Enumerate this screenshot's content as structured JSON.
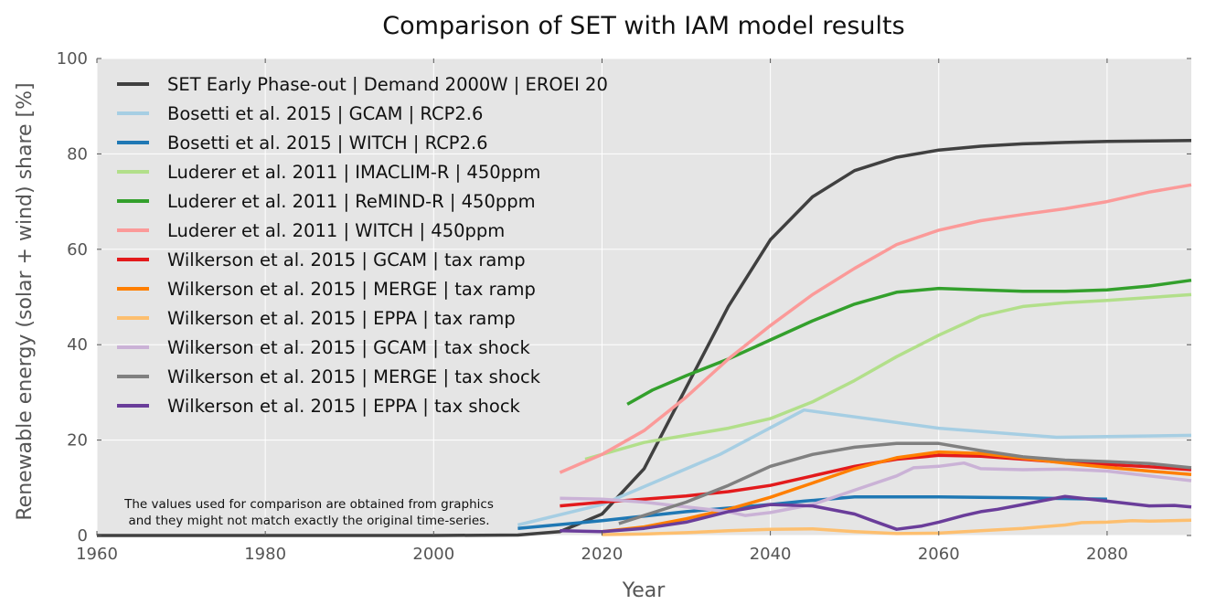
{
  "chart_data": {
    "type": "line",
    "title": "Comparison of SET with IAM model results",
    "xlabel": "Year",
    "ylabel": "Renewable energy (solar + wind) share [%]",
    "xlim": [
      1960,
      2090
    ],
    "ylim": [
      0,
      100
    ],
    "xticks": [
      1960,
      1980,
      2000,
      2020,
      2040,
      2060,
      2080
    ],
    "yticks": [
      0,
      20,
      40,
      60,
      80,
      100
    ],
    "grid": true,
    "legend_position": "upper-left",
    "note": [
      "The values used for comparison are obtained from graphics",
      "and they might not match exactly the original time-series."
    ],
    "series": [
      {
        "name": "SET Early Phase-out | Demand 2000W | EROEI 20",
        "color": "#404040",
        "x": [
          1960,
          2000,
          2010,
          2015,
          2020,
          2025,
          2030,
          2035,
          2040,
          2045,
          2050,
          2055,
          2060,
          2065,
          2070,
          2075,
          2080,
          2085,
          2090
        ],
        "y": [
          0,
          0,
          0.1,
          0.8,
          4.5,
          14,
          31,
          48,
          62,
          71,
          76.5,
          79.3,
          80.8,
          81.6,
          82.1,
          82.4,
          82.6,
          82.7,
          82.8
        ]
      },
      {
        "name": "Bosetti et al. 2015 | GCAM | RCP2.6",
        "color": "#a6cee3",
        "x": [
          2010,
          2020,
          2034,
          2044,
          2060,
          2074,
          2090
        ],
        "y": [
          2.2,
          6.5,
          17,
          26.3,
          22.5,
          20.6,
          21
        ]
      },
      {
        "name": "Bosetti et al. 2015 | WITCH | RCP2.6",
        "color": "#1f78b4",
        "x": [
          2010,
          2020,
          2030,
          2040,
          2044,
          2050,
          2060,
          2070,
          2080
        ],
        "y": [
          1.5,
          3.1,
          5,
          6.5,
          7.2,
          8.1,
          8.1,
          7.9,
          7.6
        ]
      },
      {
        "name": "Luderer et al. 2011 | IMACLIM-R | 450ppm",
        "color": "#b2df8a",
        "x": [
          2018,
          2025,
          2030,
          2035,
          2040,
          2045,
          2050,
          2055,
          2060,
          2065,
          2070,
          2075,
          2080,
          2090
        ],
        "y": [
          16,
          19.5,
          21,
          22.5,
          24.5,
          28,
          32.5,
          37.5,
          42,
          46,
          48,
          48.8,
          49.3,
          50.5
        ]
      },
      {
        "name": "Luderer et al. 2011 | ReMIND-R | 450ppm",
        "color": "#33a02c",
        "x": [
          2023,
          2026,
          2030,
          2035,
          2040,
          2045,
          2050,
          2055,
          2060,
          2065,
          2070,
          2075,
          2080,
          2085,
          2090
        ],
        "y": [
          27.5,
          30.5,
          33.5,
          37,
          41,
          45,
          48.5,
          51,
          51.8,
          51.5,
          51.2,
          51.2,
          51.5,
          52.3,
          53.5
        ]
      },
      {
        "name": "Luderer et al. 2011 | WITCH | 450ppm",
        "color": "#fb9a99",
        "x": [
          2015,
          2020,
          2025,
          2030,
          2035,
          2040,
          2045,
          2050,
          2055,
          2060,
          2065,
          2070,
          2075,
          2080,
          2085,
          2090
        ],
        "y": [
          13.2,
          17,
          22,
          29,
          37,
          44,
          50.5,
          56,
          61,
          64,
          66,
          67.3,
          68.5,
          70,
          72,
          73.5
        ]
      },
      {
        "name": "Wilkerson et al. 2015 | GCAM | tax ramp",
        "color": "#e31a1c",
        "x": [
          2015,
          2020,
          2025,
          2030,
          2035,
          2040,
          2045,
          2050,
          2055,
          2060,
          2065,
          2070,
          2075,
          2080,
          2085,
          2090
        ],
        "y": [
          6.2,
          7,
          7.6,
          8.3,
          9.2,
          10.5,
          12.5,
          14.5,
          16,
          16.8,
          16.6,
          16,
          15.3,
          14.9,
          14.4,
          13.8
        ]
      },
      {
        "name": "Wilkerson et al. 2015 | MERGE | tax ramp",
        "color": "#ff7f00",
        "x": [
          2020,
          2025,
          2030,
          2035,
          2040,
          2045,
          2050,
          2055,
          2060,
          2065,
          2070,
          2075,
          2080,
          2085,
          2090
        ],
        "y": [
          0.8,
          1.8,
          3.5,
          5.5,
          8,
          11,
          14,
          16.3,
          17.5,
          17.2,
          16.2,
          15.2,
          14.3,
          13.5,
          12.8
        ]
      },
      {
        "name": "Wilkerson et al. 2015 | EPPA | tax ramp",
        "color": "#fdbf6f",
        "x": [
          2020,
          2025,
          2030,
          2035,
          2040,
          2045,
          2050,
          2055,
          2060,
          2065,
          2070,
          2075,
          2077,
          2080,
          2083,
          2085,
          2090
        ],
        "y": [
          0.2,
          0.3,
          0.6,
          1,
          1.3,
          1.4,
          0.8,
          0.4,
          0.5,
          1,
          1.5,
          2.2,
          2.7,
          2.8,
          3.1,
          3,
          3.2
        ]
      },
      {
        "name": "Wilkerson et al. 2015 | GCAM | tax shock",
        "color": "#cab2d6",
        "x": [
          2015,
          2020,
          2025,
          2030,
          2035,
          2037,
          2040,
          2045,
          2050,
          2055,
          2057,
          2060,
          2063,
          2065,
          2070,
          2075,
          2080,
          2085,
          2090
        ],
        "y": [
          7.8,
          7.6,
          7,
          6,
          5,
          4.2,
          4.8,
          6.5,
          9.5,
          12.5,
          14.2,
          14.5,
          15.2,
          14,
          13.8,
          13.9,
          13.5,
          12.5,
          11.5
        ]
      },
      {
        "name": "Wilkerson et al. 2015 | MERGE | tax shock",
        "color": "#808080",
        "x": [
          2022,
          2025,
          2030,
          2035,
          2040,
          2045,
          2050,
          2055,
          2060,
          2065,
          2070,
          2075,
          2080,
          2085,
          2090
        ],
        "y": [
          2.5,
          4.2,
          7,
          10.5,
          14.5,
          17,
          18.5,
          19.3,
          19.3,
          17.8,
          16.5,
          15.8,
          15.5,
          15.1,
          14.2
        ]
      },
      {
        "name": "Wilkerson et al. 2015 | EPPA | tax shock",
        "color": "#6a3d9a",
        "x": [
          2015,
          2020,
          2025,
          2030,
          2035,
          2040,
          2045,
          2050,
          2052,
          2055,
          2058,
          2060,
          2063,
          2065,
          2067,
          2070,
          2075,
          2080,
          2085,
          2088,
          2090
        ],
        "y": [
          1,
          0.8,
          1.5,
          2.8,
          5,
          6.5,
          6.2,
          4.5,
          3.2,
          1.3,
          2,
          2.8,
          4.2,
          5,
          5.5,
          6.5,
          8.2,
          7.2,
          6.2,
          6.3,
          6
        ]
      }
    ]
  }
}
